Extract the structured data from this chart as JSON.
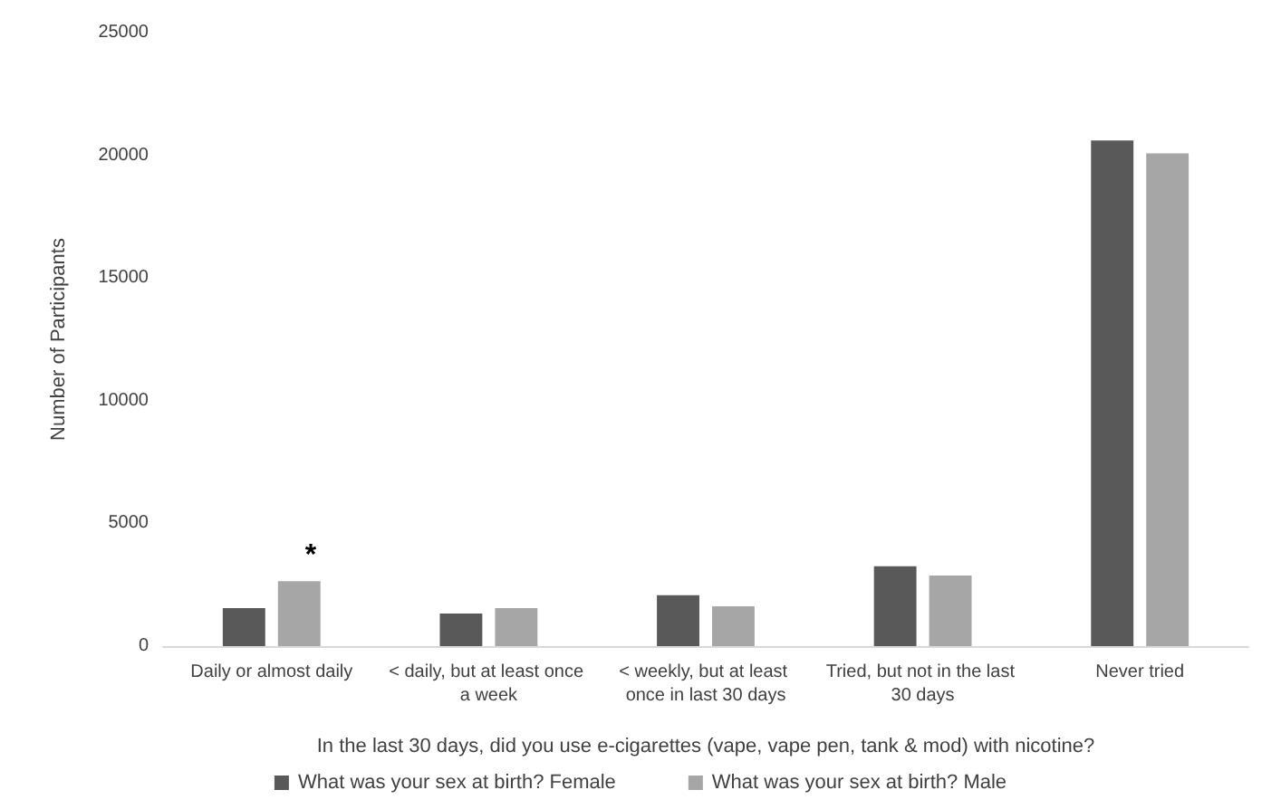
{
  "chart_data": {
    "type": "bar",
    "categories": [
      "Daily or almost daily",
      "< daily, but at least once a week",
      "< weekly, but at least once in last 30 days",
      "Tried, but not in the last 30 days",
      "Never tried"
    ],
    "series": [
      {
        "name": "What was your sex at birth? Female",
        "color": "#595959",
        "values": [
          1550,
          1330,
          2070,
          3250,
          20600
        ]
      },
      {
        "name": "What was your sex at birth? Male",
        "color": "#a6a6a6",
        "values": [
          2650,
          1550,
          1620,
          2880,
          20080
        ]
      }
    ],
    "xlabel": "In the last 30 days, did you use e-cigarettes (vape, vape pen, tank & mod) with nicotine?",
    "ylabel": "Number of Participants",
    "ylim": [
      0,
      25000
    ],
    "yticks": [
      0,
      5000,
      10000,
      15000,
      20000,
      25000
    ],
    "annotations": [
      {
        "text": "*",
        "x": "Daily or almost daily",
        "y": 2650
      }
    ],
    "grid": false,
    "legend": "bottom"
  }
}
